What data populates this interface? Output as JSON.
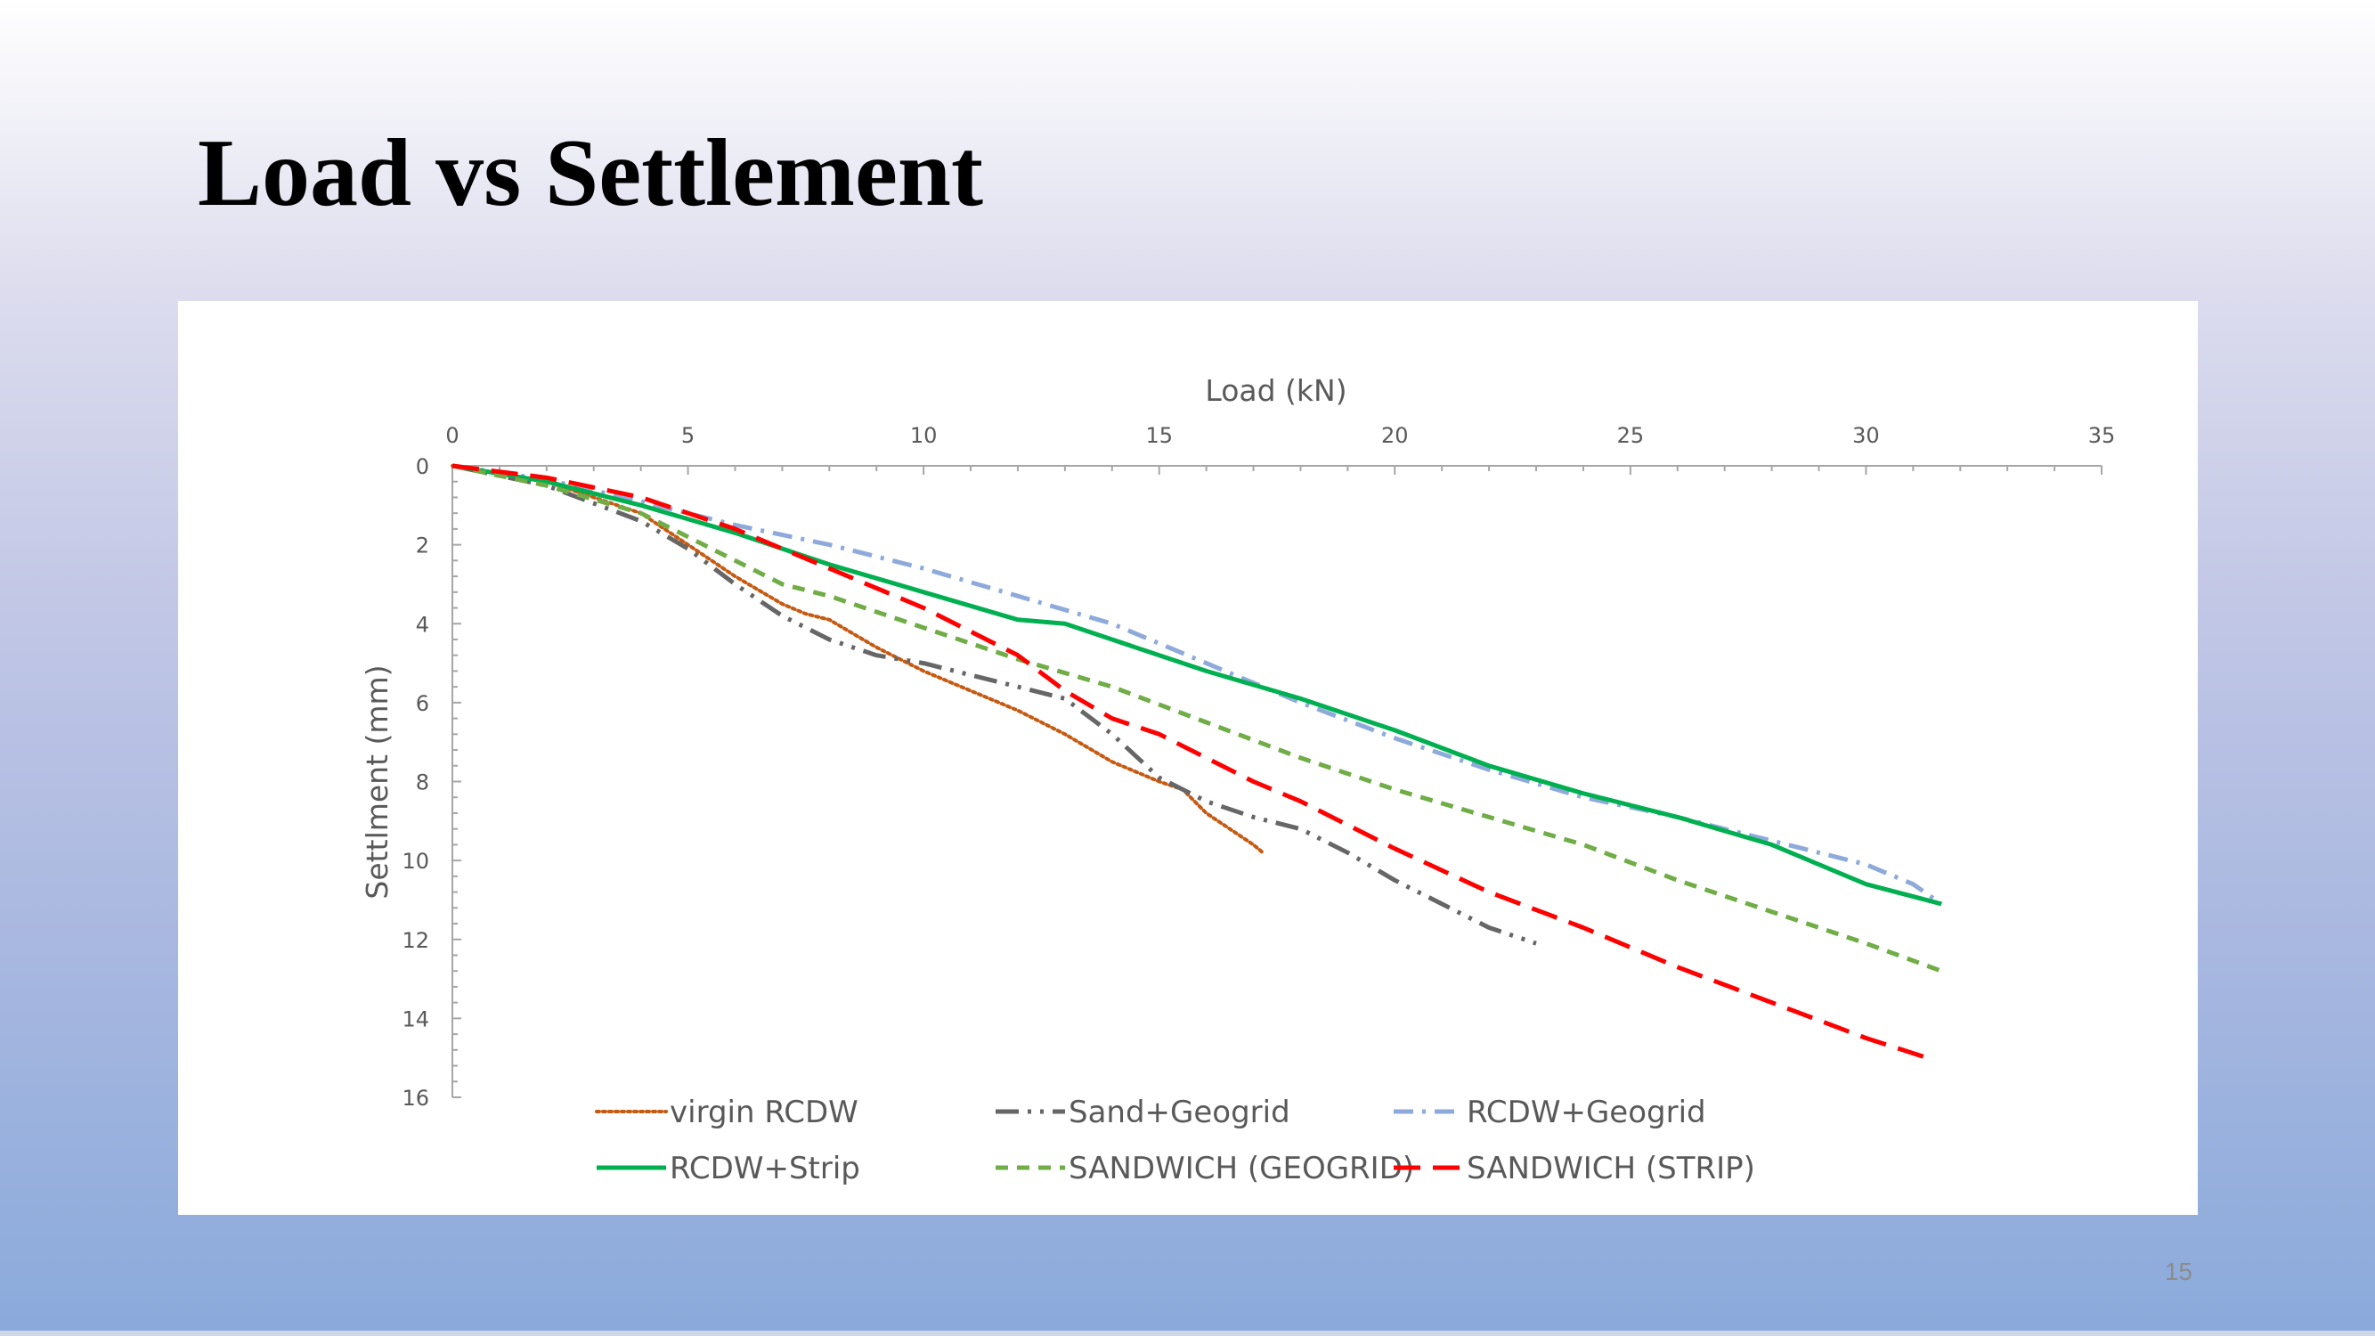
{
  "slide": {
    "title": "Load vs Settlement",
    "page_number": "15"
  },
  "chart_data": {
    "type": "line",
    "title": "",
    "xlabel": "Load (kN)",
    "ylabel": "Settlment (mm)",
    "xlim": [
      0,
      35
    ],
    "ylim": [
      0,
      16
    ],
    "y_inverted": true,
    "x_axis_position": "top",
    "x_ticks": [
      0,
      5,
      10,
      15,
      20,
      25,
      30,
      35
    ],
    "y_ticks": [
      0,
      2,
      4,
      6,
      8,
      10,
      12,
      14,
      16
    ],
    "grid": false,
    "legend_position": "bottom",
    "series": [
      {
        "name": "virgin RCDW",
        "color": "#c55a11",
        "dash": "dotted",
        "x": [
          0,
          2,
          4,
          5,
          6,
          7,
          7.5,
          8,
          9,
          10,
          11,
          12,
          13,
          14,
          15,
          15.5,
          16,
          17,
          17.2
        ],
        "y": [
          0,
          0.4,
          1.2,
          2.0,
          2.8,
          3.5,
          3.75,
          3.9,
          4.6,
          5.2,
          5.7,
          6.2,
          6.8,
          7.5,
          8.0,
          8.2,
          8.8,
          9.6,
          9.8
        ]
      },
      {
        "name": "Sand+Geogrid",
        "color": "#666666",
        "dash": "dashdotdot",
        "x": [
          0,
          2,
          4,
          5,
          6,
          7,
          8,
          9,
          10,
          11,
          12,
          13,
          14,
          15,
          16,
          17,
          18,
          19,
          20,
          21,
          22,
          23
        ],
        "y": [
          0,
          0.5,
          1.4,
          2.1,
          3.0,
          3.8,
          4.4,
          4.8,
          5.0,
          5.3,
          5.6,
          5.9,
          6.8,
          7.9,
          8.5,
          8.9,
          9.2,
          9.8,
          10.5,
          11.1,
          11.7,
          12.1
        ]
      },
      {
        "name": "RCDW+Geogrid",
        "color": "#8eaadb",
        "dash": "dashdot",
        "x": [
          0,
          2,
          4,
          6,
          8,
          10,
          12,
          14,
          16,
          18,
          20,
          22,
          24,
          26,
          28,
          30,
          31,
          31.6
        ],
        "y": [
          0,
          0.35,
          0.9,
          1.5,
          2.0,
          2.6,
          3.3,
          4.0,
          5.0,
          6.0,
          6.9,
          7.7,
          8.4,
          8.9,
          9.5,
          10.1,
          10.6,
          11.1
        ]
      },
      {
        "name": "RCDW+Strip",
        "color": "#00b050",
        "dash": "solid",
        "x": [
          0,
          2,
          4,
          6,
          8,
          10,
          12,
          13,
          14,
          16,
          18,
          20,
          22,
          24,
          26,
          28,
          30,
          31.6
        ],
        "y": [
          0,
          0.4,
          1.0,
          1.7,
          2.5,
          3.2,
          3.9,
          4.0,
          4.4,
          5.2,
          5.9,
          6.7,
          7.6,
          8.3,
          8.9,
          9.6,
          10.6,
          11.1
        ]
      },
      {
        "name": "SANDWICH (GEOGRID)",
        "color": "#70ad47",
        "dash": "dashed",
        "x": [
          0,
          2,
          4,
          6,
          7,
          8,
          10,
          12,
          14,
          16,
          18,
          20,
          22,
          24,
          26,
          28,
          30,
          31.6
        ],
        "y": [
          0,
          0.5,
          1.2,
          2.4,
          3.0,
          3.3,
          4.1,
          4.9,
          5.6,
          6.5,
          7.4,
          8.2,
          8.9,
          9.6,
          10.5,
          11.3,
          12.1,
          12.8
        ]
      },
      {
        "name": "SANDWICH (STRIP)",
        "color": "#ff0000",
        "dash": "longdash",
        "x": [
          0,
          2,
          4,
          6,
          8,
          10,
          12,
          13,
          14,
          15,
          16,
          17,
          18,
          20,
          22,
          24,
          26,
          28,
          30,
          31.3
        ],
        "y": [
          0,
          0.3,
          0.8,
          1.6,
          2.6,
          3.6,
          4.8,
          5.7,
          6.4,
          6.8,
          7.4,
          8.0,
          8.5,
          9.7,
          10.8,
          11.7,
          12.7,
          13.6,
          14.5,
          15.0
        ]
      }
    ]
  }
}
